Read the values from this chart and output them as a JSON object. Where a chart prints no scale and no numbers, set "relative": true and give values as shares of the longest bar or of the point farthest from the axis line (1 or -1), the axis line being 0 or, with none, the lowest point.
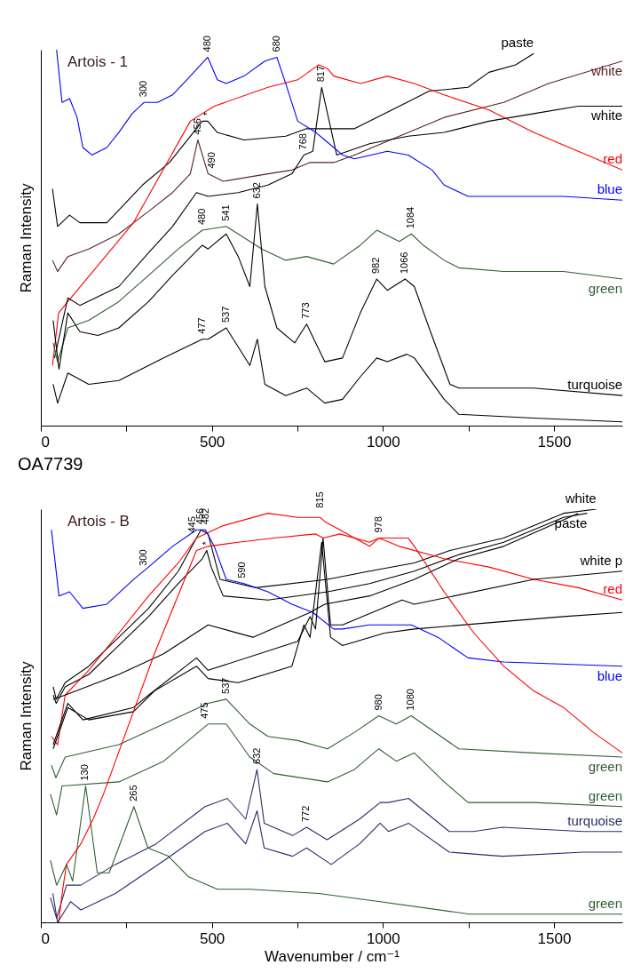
{
  "chart_data": [
    {
      "type": "line",
      "ylabel": "Raman Intensity",
      "relative": true,
      "xlim": [
        0,
        1700
      ],
      "xticks": [
        0,
        {
          "value": 250,
          "label": null
        },
        500,
        {
          "value": 750,
          "label": null
        },
        1000,
        {
          "value": 1250,
          "label": null
        },
        1500
      ],
      "marker": "none",
      "grid": false,
      "series": [
        {
          "name": "paste",
          "color": "#000000",
          "x": [
            34,
            49,
            84,
            114,
            193,
            297,
            376,
            437,
            472,
            488,
            516,
            594,
            716,
            777,
            838,
            917,
            1004,
            1092,
            1135,
            1249,
            1310,
            1388,
            1441
          ],
          "values": [
            0.63,
            0.53,
            0.56,
            0.54,
            0.54,
            0.64,
            0.7,
            0.77,
            0.81,
            0.81,
            0.78,
            0.76,
            0.77,
            0.79,
            0.79,
            0.79,
            0.83,
            0.87,
            0.89,
            0.9,
            0.94,
            0.96,
            0.99
          ]
        },
        {
          "name": "white",
          "color": "#5a2222",
          "x": [
            34,
            49,
            79,
            140,
            228,
            315,
            385,
            437,
            459,
            489,
            533,
            664,
            734,
            786,
            856,
            917,
            1048,
            1179,
            1353,
            1484,
            1700
          ],
          "values": [
            0.44,
            0.41,
            0.45,
            0.47,
            0.51,
            0.57,
            0.62,
            0.67,
            0.76,
            0.67,
            0.65,
            0.67,
            0.68,
            0.7,
            0.7,
            0.72,
            0.77,
            0.82,
            0.86,
            0.91,
            0.97
          ]
        },
        {
          "name": "red",
          "color": "#ff0000",
          "x": [
            34,
            52,
            79,
            271,
            437,
            507,
            664,
            751,
            812,
            838,
            856,
            935,
            1013,
            1092,
            1179,
            1310,
            1441,
            1571,
            1700
          ],
          "values": [
            0.16,
            0.3,
            0.33,
            0.54,
            0.81,
            0.85,
            0.9,
            0.92,
            0.96,
            0.95,
            0.93,
            0.91,
            0.93,
            0.91,
            0.88,
            0.84,
            0.78,
            0.73,
            0.68
          ]
        },
        {
          "name": "white",
          "color": "#000000",
          "x": [
            40,
            79,
            114,
            228,
            315,
            385,
            455,
            489,
            577,
            664,
            734,
            769,
            795,
            821,
            865,
            961,
            1074,
            1179,
            1310,
            1441,
            1571,
            1700
          ],
          "values": [
            0.18,
            0.34,
            0.32,
            0.37,
            0.46,
            0.53,
            0.62,
            0.61,
            0.62,
            0.64,
            0.67,
            0.72,
            0.73,
            0.9,
            0.72,
            0.75,
            0.77,
            0.78,
            0.81,
            0.83,
            0.85,
            0.85
          ]
        },
        {
          "name": "blue",
          "color": "#0000ff",
          "x": [
            46,
            62,
            84,
            106,
            123,
            149,
            193,
            228,
            267,
            302,
            341,
            385,
            437,
            488,
            516,
            542,
            594,
            655,
            690,
            716,
            751,
            804,
            830,
            882,
            917,
            1013,
            1074,
            1144,
            1179,
            1249,
            1528,
            1700
          ],
          "values": [
            1.0,
            0.86,
            0.87,
            0.82,
            0.74,
            0.72,
            0.74,
            0.78,
            0.83,
            0.86,
            0.86,
            0.88,
            0.93,
            0.98,
            0.92,
            0.91,
            0.93,
            0.97,
            0.98,
            0.91,
            0.81,
            0.78,
            0.76,
            0.72,
            0.71,
            0.73,
            0.72,
            0.68,
            0.64,
            0.61,
            0.61,
            0.6
          ]
        },
        {
          "name": "green",
          "color": "#2f5f2f",
          "x": [
            36,
            49,
            79,
            140,
            228,
            315,
            402,
            472,
            542,
            594,
            646,
            716,
            777,
            856,
            934,
            982,
            1048,
            1083,
            1118,
            1179,
            1222,
            1353,
            1528,
            1700
          ],
          "values": [
            0.22,
            0.17,
            0.26,
            0.28,
            0.33,
            0.4,
            0.47,
            0.52,
            0.53,
            0.5,
            0.47,
            0.44,
            0.45,
            0.43,
            0.48,
            0.52,
            0.49,
            0.51,
            0.48,
            0.44,
            0.42,
            0.41,
            0.41,
            0.39
          ]
        },
        {
          "name": "turquoise",
          "color": "#000000",
          "x": [
            36,
            53,
            79,
            114,
            167,
            228,
            315,
            385,
            472,
            489,
            542,
            577,
            611,
            633,
            655,
            690,
            742,
            777,
            830,
            882,
            934,
            982,
            1013,
            1065,
            1092,
            1135,
            1196,
            1222,
            1441,
            1700
          ],
          "values": [
            0.28,
            0.15,
            0.3,
            0.25,
            0.24,
            0.26,
            0.33,
            0.4,
            0.48,
            0.47,
            0.51,
            0.45,
            0.37,
            0.59,
            0.37,
            0.26,
            0.22,
            0.27,
            0.17,
            0.18,
            0.3,
            0.39,
            0.36,
            0.39,
            0.37,
            0.26,
            0.11,
            0.1,
            0.1,
            0.08
          ]
        },
        {
          "color": "#000000",
          "x": [
            36,
            49,
            79,
            140,
            228,
            359,
            472,
            489,
            542,
            611,
            633,
            655,
            716,
            777,
            830,
            882,
            934,
            982,
            1013,
            1070,
            1092,
            1179,
            1222,
            1441,
            1700
          ],
          "values": [
            0.11,
            0.06,
            0.14,
            0.11,
            0.12,
            0.18,
            0.23,
            0.23,
            0.26,
            0.16,
            0.23,
            0.11,
            0.08,
            0.1,
            0.06,
            0.07,
            0.13,
            0.18,
            0.17,
            0.19,
            0.18,
            0.07,
            0.03,
            0.02,
            0.01
          ]
        }
      ],
      "annotations": [
        "Artois - 1",
        {
          "text": "300",
          "x": 300,
          "y": 0.86
        },
        {
          "text": "480",
          "x": 488,
          "y": 0.98
        },
        {
          "text": "680",
          "x": 690,
          "y": 0.98
        },
        {
          "text": "817",
          "x": 821,
          "y": 0.9
        },
        {
          "text": "456",
          "x": 459,
          "y": 0.76
        },
        {
          "text": "*",
          "x": 488,
          "y": 0.81
        },
        {
          "text": "490",
          "x": 500,
          "y": 0.67
        },
        {
          "text": "768",
          "x": 769,
          "y": 0.72
        },
        {
          "text": "632",
          "x": 633,
          "y": 0.59
        },
        {
          "text": "480",
          "x": 472,
          "y": 0.52
        },
        {
          "text": "541",
          "x": 542,
          "y": 0.53
        },
        {
          "text": "982",
          "x": 982,
          "y": 0.39
        },
        {
          "text": "1066",
          "x": 1065,
          "y": 0.39
        },
        {
          "text": "1084",
          "x": 1083,
          "y": 0.51
        },
        {
          "text": "477",
          "x": 472,
          "y": 0.23
        },
        {
          "text": "537",
          "x": 542,
          "y": 0.26
        },
        {
          "text": "773",
          "x": 777,
          "y": 0.27
        }
      ]
    },
    {
      "type": "line",
      "title": "OA7739",
      "xlabel": "Wavenumber / cm⁻¹",
      "ylabel": "Raman Intensity",
      "relative": true,
      "xlim": [
        0,
        1700
      ],
      "xticks": [
        0,
        {
          "value": 250,
          "label": null
        },
        500,
        {
          "value": 750,
          "label": null
        },
        1000,
        {
          "value": 1250,
          "label": null
        },
        1500
      ],
      "marker": "none",
      "grid": false,
      "series": [
        {
          "name": "white",
          "color": "#000000",
          "x": [
            36,
            45,
            71,
            140,
            228,
            315,
            402,
            455,
            468,
            489,
            524,
            577,
            629,
            838,
            961,
            1092,
            1196,
            1353,
            1528,
            1624
          ],
          "values": [
            0.57,
            0.54,
            0.58,
            0.62,
            0.69,
            0.76,
            0.85,
            0.93,
            0.95,
            0.94,
            0.83,
            0.82,
            0.81,
            0.83,
            0.85,
            0.87,
            0.9,
            0.93,
            0.99,
            1.0
          ]
        },
        {
          "name": "paste",
          "color": "#000000",
          "x": [
            36,
            45,
            71,
            140,
            228,
            315,
            402,
            472,
            485,
            498,
            533,
            664,
            838,
            961,
            1092,
            1222,
            1353,
            1528,
            1597
          ],
          "values": [
            0.55,
            0.53,
            0.57,
            0.6,
            0.67,
            0.74,
            0.82,
            0.88,
            0.9,
            0.86,
            0.79,
            0.78,
            0.8,
            0.82,
            0.85,
            0.89,
            0.92,
            0.98,
            0.99
          ]
        },
        {
          "name": "red",
          "color": "#ff0000",
          "x": [
            31,
            49,
            71,
            140,
            228,
            315,
            402,
            455,
            533,
            664,
            751,
            817,
            830,
            874,
            961,
            988,
            1048,
            1179,
            1310,
            1441,
            1571,
            1700
          ],
          "values": [
            0.45,
            0.43,
            0.55,
            0.61,
            0.7,
            0.79,
            0.87,
            0.93,
            0.96,
            0.99,
            0.98,
            0.98,
            0.97,
            0.95,
            0.91,
            0.93,
            0.91,
            0.88,
            0.86,
            0.83,
            0.81,
            0.78
          ]
        },
        {
          "name": "blue",
          "color": "#0000ff",
          "x": [
            31,
            53,
            84,
            123,
            193,
            271,
            315,
            385,
            455,
            481,
            507,
            542,
            594,
            664,
            734,
            795,
            856,
            882,
            961,
            1083,
            1161,
            1249,
            1353,
            1700
          ],
          "values": [
            0.95,
            0.79,
            0.8,
            0.76,
            0.77,
            0.83,
            0.86,
            0.91,
            0.95,
            0.95,
            0.91,
            0.83,
            0.82,
            0.8,
            0.77,
            0.75,
            0.71,
            0.71,
            0.72,
            0.72,
            0.69,
            0.64,
            0.63,
            0.62
          ]
        },
        {
          "name": "white p",
          "color": "#000000",
          "x": [
            36,
            79,
            123,
            271,
            315,
            455,
            489,
            751,
            787,
            803,
            825,
            847,
            882,
            1056,
            1092,
            1441,
            1700
          ],
          "values": [
            0.43,
            0.53,
            0.49,
            0.52,
            0.55,
            0.64,
            0.61,
            0.68,
            0.74,
            0.71,
            0.93,
            0.72,
            0.72,
            0.78,
            0.77,
            0.83,
            0.85
          ]
        },
        {
          "name": "green",
          "color": "#2f5f2f",
          "x": [
            31,
            44,
            71,
            228,
            359,
            489,
            542,
            611,
            664,
            751,
            838,
            917,
            988,
            1039,
            1083,
            1135,
            1222,
            1441,
            1700
          ],
          "values": [
            0.38,
            0.35,
            0.4,
            0.43,
            0.48,
            0.53,
            0.54,
            0.48,
            0.45,
            0.44,
            0.42,
            0.46,
            0.5,
            0.48,
            0.5,
            0.47,
            0.42,
            0.41,
            0.4
          ]
        },
        {
          "name": "green",
          "color": "#2f5f2f",
          "x": [
            28,
            46,
            62,
            228,
            359,
            489,
            542,
            611,
            681,
            838,
            917,
            988,
            1039,
            1092,
            1179,
            1249,
            1441,
            1700
          ],
          "values": [
            0.31,
            0.26,
            0.33,
            0.34,
            0.39,
            0.48,
            0.48,
            0.4,
            0.36,
            0.34,
            0.37,
            0.42,
            0.39,
            0.41,
            0.34,
            0.29,
            0.29,
            0.28
          ]
        },
        {
          "color": "#000000",
          "x": [
            36,
            71,
            228,
            359,
            489,
            620,
            787,
            830,
            961,
            1092,
            1222,
            1353,
            1571
          ],
          "values": [
            0.54,
            0.55,
            0.6,
            0.65,
            0.72,
            0.69,
            0.75,
            0.77,
            0.79,
            0.83,
            0.88,
            0.91,
            0.99
          ]
        },
        {
          "name": "turquoise",
          "color": "#2a2a6a",
          "x": [
            28,
            46,
            75,
            117,
            218,
            337,
            480,
            545,
            599,
            632,
            653,
            736,
            777,
            837,
            932,
            992,
            1016,
            1075,
            1194,
            1264,
            1349,
            1587,
            1700
          ],
          "values": [
            0.06,
            0.01,
            0.09,
            0.09,
            0.14,
            0.19,
            0.28,
            0.3,
            0.25,
            0.37,
            0.24,
            0.21,
            0.23,
            0.2,
            0.25,
            0.29,
            0.29,
            0.3,
            0.22,
            0.22,
            0.23,
            0.22,
            0.22
          ]
        },
        {
          "color": "#000000",
          "x": [
            36,
            79,
            140,
            271,
            332,
            455,
            489,
            577,
            734,
            769,
            787,
            821,
            847,
            882,
            1004,
            1092,
            1528,
            1700
          ],
          "values": [
            0.42,
            0.52,
            0.49,
            0.51,
            0.56,
            0.62,
            0.59,
            0.58,
            0.62,
            0.72,
            0.69,
            0.92,
            0.69,
            0.67,
            0.7,
            0.71,
            0.74,
            0.75
          ]
        },
        {
          "name": "green",
          "color": "#2f5f2f",
          "x": [
            28,
            46,
            75,
            93,
            131,
            165,
            200,
            272,
            313,
            373,
            432,
            516,
            611,
            813,
            992,
            1253,
            1700
          ],
          "values": [
            0.15,
            0.09,
            0.14,
            0.1,
            0.33,
            0.12,
            0.12,
            0.28,
            0.18,
            0.16,
            0.11,
            0.08,
            0.08,
            0.07,
            0.05,
            0.02,
            0.02
          ]
        },
        {
          "color": "#ff0000",
          "x": [
            52,
            64,
            75,
            117,
            153,
            183,
            332,
            455,
            489,
            577,
            681,
            803,
            826,
            874,
            961,
            988,
            1074,
            1092,
            1179,
            1266,
            1353,
            1441,
            1528,
            1615,
            1700
          ],
          "values": [
            0.0,
            0.08,
            0.14,
            0.19,
            0.25,
            0.31,
            0.65,
            0.9,
            0.91,
            0.92,
            0.93,
            0.94,
            0.93,
            0.94,
            0.92,
            0.93,
            0.93,
            0.91,
            0.8,
            0.7,
            0.62,
            0.56,
            0.52,
            0.46,
            0.41
          ]
        },
        {
          "color": "#2a2a6a",
          "x": [
            35,
            49,
            87,
            117,
            218,
            361,
            480,
            545,
            599,
            632,
            653,
            736,
            777,
            849,
            932,
            992,
            1016,
            1075,
            1194,
            1349,
            1587,
            1700
          ],
          "values": [
            0.07,
            0.0,
            0.05,
            0.03,
            0.07,
            0.15,
            0.22,
            0.24,
            0.19,
            0.27,
            0.18,
            0.16,
            0.18,
            0.14,
            0.19,
            0.24,
            0.22,
            0.24,
            0.17,
            0.16,
            0.17,
            0.17
          ]
        }
      ],
      "annotations": [
        "Artois - B",
        {
          "text": "300",
          "x": 300,
          "y": 0.85
        },
        {
          "text": "445",
          "x": 445,
          "y": 0.93
        },
        {
          "text": "482",
          "x": 482,
          "y": 0.95
        },
        {
          "text": "456",
          "x": 468,
          "y": 0.95
        },
        {
          "text": "*",
          "x": 485,
          "y": 0.9
        },
        {
          "text": "590",
          "x": 590,
          "y": 0.82
        },
        {
          "text": "815",
          "x": 817,
          "y": 0.99
        },
        {
          "text": "978",
          "x": 988,
          "y": 0.93
        },
        {
          "text": "537",
          "x": 542,
          "y": 0.54
        },
        {
          "text": "475",
          "x": 480,
          "y": 0.48
        },
        {
          "text": "980",
          "x": 988,
          "y": 0.5
        },
        {
          "text": "1080",
          "x": 1083,
          "y": 0.5
        },
        {
          "text": "130",
          "x": 131,
          "y": 0.33
        },
        {
          "text": "265",
          "x": 272,
          "y": 0.28
        },
        {
          "text": "632",
          "x": 632,
          "y": 0.37
        },
        {
          "text": "772",
          "x": 777,
          "y": 0.23
        }
      ]
    }
  ]
}
